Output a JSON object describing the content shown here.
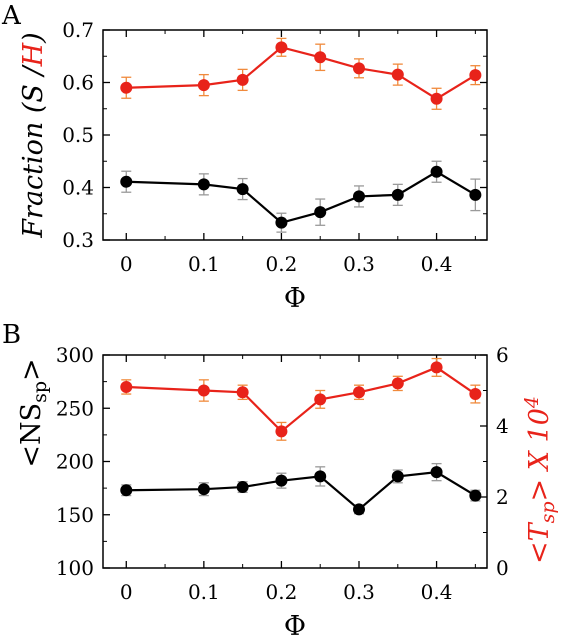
{
  "chart_data": [
    {
      "panel": "A",
      "type": "line",
      "x": [
        0,
        0.1,
        0.15,
        0.2,
        0.25,
        0.3,
        0.35,
        0.4,
        0.45
      ],
      "xlabel": "Φ",
      "ylabel": "Fraction (S /H)",
      "ylabel_parts": {
        "prefix": "Fraction (",
        "s": "S",
        "sep": " /",
        "h": "H",
        "suffix": ")"
      },
      "ylim": [
        0.3,
        0.7
      ],
      "yticks": [
        0.3,
        0.4,
        0.5,
        0.6,
        0.7
      ],
      "xticks": [
        0,
        0.1,
        0.2,
        0.3,
        0.4
      ],
      "series": [
        {
          "color": "#e8231a",
          "values": [
            0.59,
            0.595,
            0.605,
            0.667,
            0.648,
            0.627,
            0.615,
            0.569,
            0.614
          ],
          "errors": [
            0.02,
            0.02,
            0.02,
            0.017,
            0.025,
            0.018,
            0.02,
            0.02,
            0.018
          ]
        },
        {
          "color": "#000000",
          "values": [
            0.411,
            0.406,
            0.397,
            0.333,
            0.353,
            0.383,
            0.386,
            0.43,
            0.386
          ],
          "errors": [
            0.02,
            0.02,
            0.02,
            0.018,
            0.025,
            0.02,
            0.02,
            0.02,
            0.03
          ]
        }
      ],
      "grid": false
    },
    {
      "panel": "B",
      "type": "line",
      "x": [
        0,
        0.1,
        0.15,
        0.2,
        0.25,
        0.3,
        0.35,
        0.4,
        0.45
      ],
      "xlabel": "Φ",
      "ylabel": "<NS_sp>",
      "ylabel_parts": {
        "left_open": "<NS",
        "left_sub": "sp",
        "left_close": ">"
      },
      "ylim": [
        100,
        300
      ],
      "yticks": [
        100,
        150,
        200,
        250,
        300
      ],
      "y2label": "<T_sp> X 10^4",
      "y2label_parts": {
        "open": "<T",
        "sub": "sp",
        "mid": "> X 10",
        "sup": "4"
      },
      "y2lim": [
        0,
        6
      ],
      "y2ticks": [
        0,
        2,
        4,
        6
      ],
      "xticks": [
        0,
        0.1,
        0.2,
        0.3,
        0.4
      ],
      "series": [
        {
          "color": "#e8231a",
          "axis": "right",
          "values": [
            5.1,
            5.0,
            4.95,
            3.85,
            4.75,
            4.95,
            5.2,
            5.65,
            4.9
          ],
          "errors": [
            0.2,
            0.3,
            0.2,
            0.25,
            0.25,
            0.2,
            0.2,
            0.25,
            0.25
          ]
        },
        {
          "color": "#000000",
          "axis": "left",
          "values": [
            173,
            174,
            176,
            182,
            186,
            155,
            186,
            190,
            168
          ],
          "errors": [
            5,
            6,
            5,
            7,
            9,
            4,
            6,
            8,
            5
          ]
        }
      ],
      "grid": false
    }
  ],
  "labels": {
    "panel_a": "A",
    "panel_b": "B"
  },
  "colors": {
    "red": "#e8231a",
    "black": "#000000",
    "error_gray": "#9a9a9a",
    "error_orange": "#f08a3c"
  }
}
